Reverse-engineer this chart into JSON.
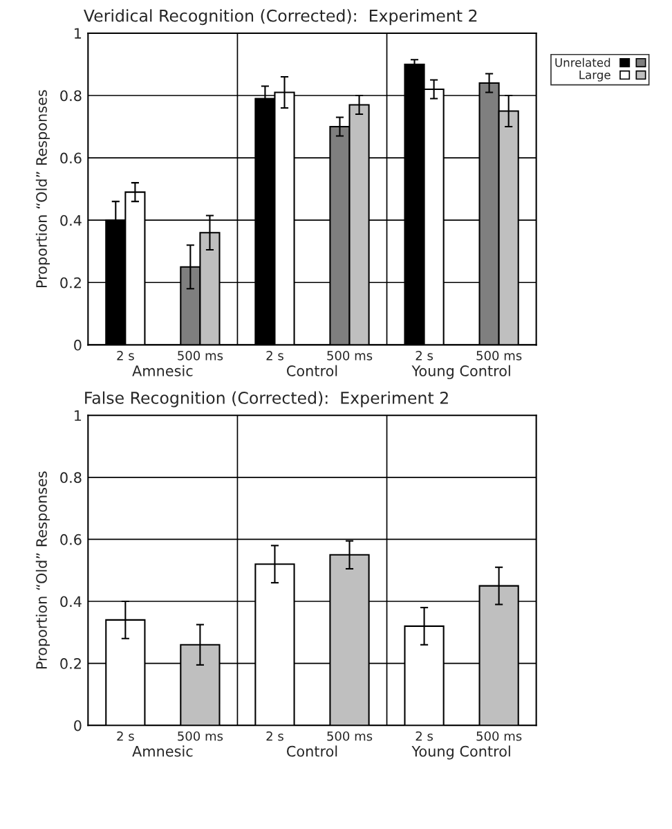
{
  "chart_data": [
    {
      "type": "bar",
      "title": "Veridical Recognition (Corrected):  Experiment 2",
      "ylabel": "Proportion “Old” Responses",
      "categories": [
        "2 s",
        "500 ms",
        "2 s",
        "500 ms",
        "2 s",
        "500 ms"
      ],
      "annotations": [
        "Amnesic",
        "Control",
        "Young Control"
      ],
      "series": [
        {
          "name": "Unrelated",
          "color": "#000000",
          "values": [
            0.4,
            null,
            0.79,
            null,
            0.9,
            null
          ],
          "errors": [
            0.06,
            null,
            0.04,
            null,
            0.015,
            null
          ]
        },
        {
          "color": "#7f7f7f",
          "values": [
            null,
            0.25,
            null,
            0.7,
            null,
            0.84
          ],
          "errors": [
            null,
            0.07,
            null,
            0.03,
            null,
            0.03
          ]
        },
        {
          "name": "Large",
          "color": "#ffffff",
          "values": [
            0.49,
            null,
            0.81,
            null,
            0.82,
            null
          ],
          "errors": [
            0.03,
            null,
            0.05,
            null,
            0.03,
            null
          ]
        },
        {
          "color": "#bfbfbf",
          "values": [
            null,
            0.36,
            null,
            0.77,
            null,
            0.75
          ],
          "errors": [
            null,
            0.055,
            null,
            0.03,
            null,
            0.05
          ]
        }
      ],
      "ylim": [
        0,
        1
      ],
      "yticks": [
        0,
        0.2,
        0.4,
        0.6,
        0.8,
        1
      ],
      "grid": "y",
      "legend": "top right"
    },
    {
      "type": "bar",
      "title": "False Recognition (Corrected):  Experiment 2",
      "ylabel": "Proportion “Old” Responses",
      "categories": [
        "2 s",
        "500 ms",
        "2 s",
        "500 ms",
        "2 s",
        "500 ms"
      ],
      "annotations": [
        "Amnesic",
        "Control",
        "Young Control"
      ],
      "series": [
        {
          "color": "#ffffff",
          "values": [
            0.34,
            null,
            0.52,
            null,
            0.32,
            null
          ],
          "errors": [
            0.06,
            null,
            0.06,
            null,
            0.06,
            null
          ]
        },
        {
          "color": "#bfbfbf",
          "values": [
            null,
            0.26,
            null,
            0.55,
            null,
            0.45
          ],
          "errors": [
            null,
            0.065,
            null,
            0.045,
            null,
            0.06
          ]
        }
      ],
      "ylim": [
        0,
        1
      ],
      "yticks": [
        0,
        0.2,
        0.4,
        0.6,
        0.8,
        1
      ],
      "grid": "y"
    }
  ]
}
